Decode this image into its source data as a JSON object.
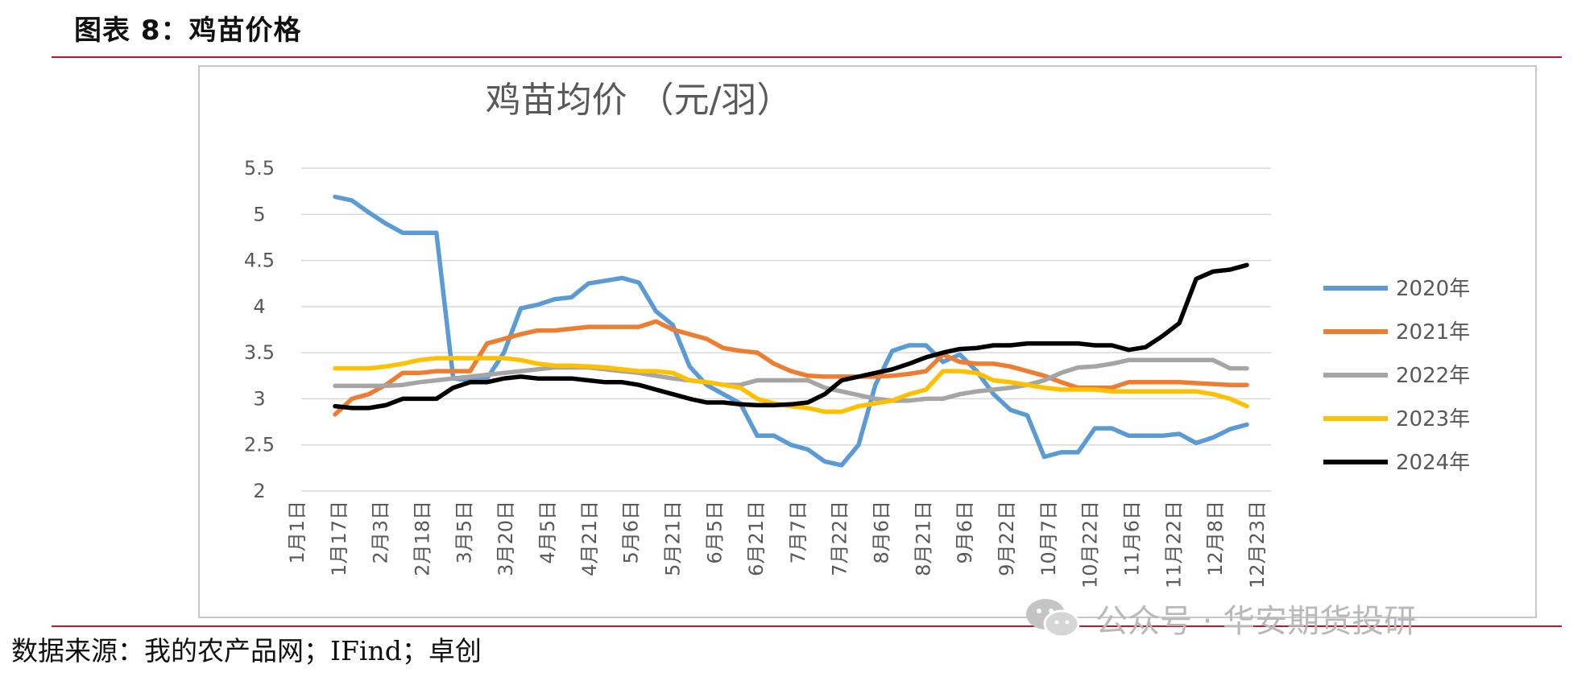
{
  "figure_title": "图表 8：鸡苗价格",
  "source_text": "数据来源：我的农产品网；IFind；卓创",
  "watermark": {
    "text": "公众号 · 华安期货投研",
    "icon": "wechat-icon"
  },
  "chart_data": {
    "type": "line",
    "title": "鸡苗均价 （元/羽）",
    "xlabel": "",
    "ylabel": "",
    "ylim": [
      2,
      5.5
    ],
    "yticks": [
      "2",
      "2.5",
      "3",
      "3.5",
      "4",
      "4.5",
      "5",
      "5.5"
    ],
    "grid": true,
    "legend_position": "right",
    "x_tick_labels": [
      "1月1日",
      "1月17日",
      "2月3日",
      "2月18日",
      "3月5日",
      "3月20日",
      "4月5日",
      "4月21日",
      "5月6日",
      "5月21日",
      "6月5日",
      "6月21日",
      "7月7日",
      "7月22日",
      "8月6日",
      "8月21日",
      "9月6日",
      "9月22日",
      "10月7日",
      "10月22日",
      "11月6日",
      "11月22日",
      "12月8日",
      "12月23日"
    ],
    "series": [
      {
        "name": "2020年",
        "color": "#5b9bd5",
        "values": [
          5.19,
          5.15,
          5.02,
          4.9,
          4.8,
          4.8,
          4.8,
          3.22,
          3.2,
          3.22,
          3.5,
          3.98,
          4.02,
          4.08,
          4.1,
          4.25,
          4.28,
          4.31,
          4.26,
          3.95,
          3.8,
          3.35,
          3.15,
          3.05,
          2.95,
          2.6,
          2.6,
          2.5,
          2.45,
          2.32,
          2.28,
          2.5,
          3.15,
          3.52,
          3.58,
          3.58,
          3.4,
          3.48,
          3.3,
          3.05,
          2.88,
          2.82,
          2.37,
          2.42,
          2.42,
          2.68,
          2.68,
          2.6,
          2.6,
          2.6,
          2.62,
          2.52,
          2.58,
          2.67,
          2.72
        ]
      },
      {
        "name": "2021年",
        "color": "#ed7d31",
        "values": [
          2.83,
          3.0,
          3.05,
          3.15,
          3.28,
          3.28,
          3.3,
          3.3,
          3.3,
          3.6,
          3.65,
          3.7,
          3.74,
          3.74,
          3.76,
          3.78,
          3.78,
          3.78,
          3.78,
          3.84,
          3.75,
          3.7,
          3.65,
          3.55,
          3.52,
          3.5,
          3.38,
          3.3,
          3.25,
          3.24,
          3.24,
          3.24,
          3.24,
          3.25,
          3.27,
          3.3,
          3.48,
          3.4,
          3.38,
          3.38,
          3.35,
          3.3,
          3.25,
          3.18,
          3.12,
          3.12,
          3.12,
          3.18,
          3.18,
          3.18,
          3.18,
          3.17,
          3.16,
          3.15,
          3.15
        ]
      },
      {
        "name": "2022年",
        "color": "#a5a5a5",
        "values": [
          3.14,
          3.14,
          3.14,
          3.14,
          3.15,
          3.18,
          3.2,
          3.22,
          3.24,
          3.26,
          3.28,
          3.3,
          3.32,
          3.34,
          3.34,
          3.34,
          3.32,
          3.3,
          3.28,
          3.25,
          3.22,
          3.2,
          3.18,
          3.15,
          3.15,
          3.2,
          3.2,
          3.2,
          3.2,
          3.12,
          3.08,
          3.04,
          3.0,
          2.98,
          2.98,
          3.0,
          3.0,
          3.05,
          3.08,
          3.1,
          3.12,
          3.15,
          3.2,
          3.28,
          3.34,
          3.35,
          3.38,
          3.42,
          3.42,
          3.42,
          3.42,
          3.42,
          3.42,
          3.33,
          3.33
        ]
      },
      {
        "name": "2023年",
        "color": "#ffc000",
        "values": [
          3.33,
          3.33,
          3.33,
          3.35,
          3.38,
          3.42,
          3.44,
          3.44,
          3.44,
          3.44,
          3.44,
          3.42,
          3.38,
          3.36,
          3.36,
          3.35,
          3.34,
          3.32,
          3.3,
          3.3,
          3.28,
          3.2,
          3.18,
          3.15,
          3.12,
          3.0,
          2.95,
          2.92,
          2.9,
          2.86,
          2.86,
          2.92,
          2.95,
          2.98,
          3.05,
          3.1,
          3.3,
          3.3,
          3.28,
          3.2,
          3.18,
          3.15,
          3.12,
          3.1,
          3.1,
          3.1,
          3.08,
          3.08,
          3.08,
          3.08,
          3.08,
          3.08,
          3.05,
          3.0,
          2.92
        ]
      },
      {
        "name": "2024年",
        "color": "#000000",
        "values": [
          2.92,
          2.9,
          2.9,
          2.93,
          3.0,
          3.0,
          3.0,
          3.12,
          3.18,
          3.18,
          3.22,
          3.24,
          3.22,
          3.22,
          3.22,
          3.2,
          3.18,
          3.18,
          3.15,
          3.1,
          3.05,
          3.0,
          2.96,
          2.96,
          2.94,
          2.93,
          2.93,
          2.94,
          2.96,
          3.05,
          3.2,
          3.24,
          3.28,
          3.32,
          3.38,
          3.45,
          3.5,
          3.54,
          3.55,
          3.58,
          3.58,
          3.6,
          3.6,
          3.6,
          3.6,
          3.58,
          3.58,
          3.53,
          3.56,
          3.68,
          3.82,
          4.3,
          4.38,
          4.4,
          4.45
        ]
      }
    ]
  }
}
